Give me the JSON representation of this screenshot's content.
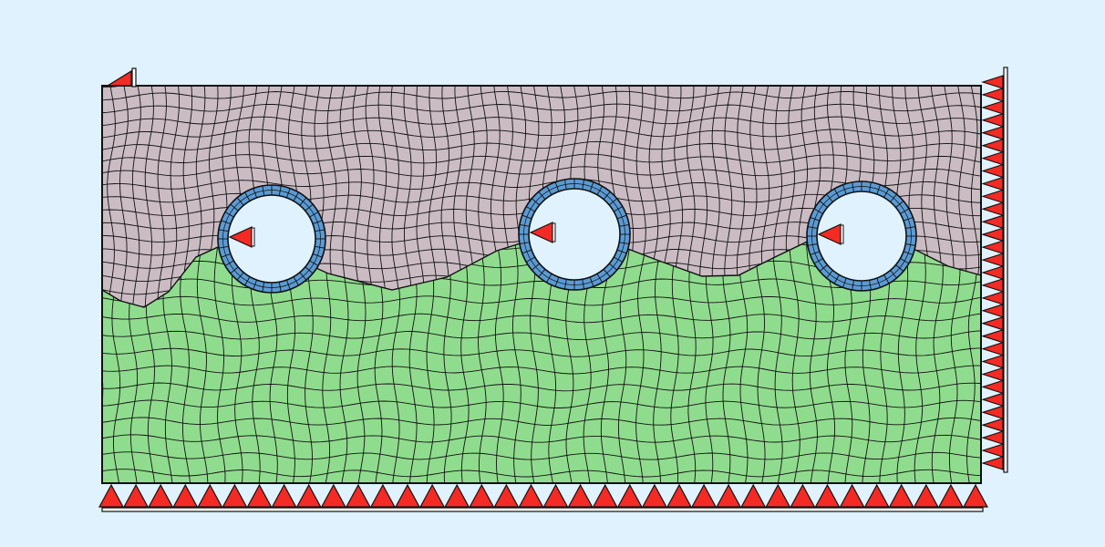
{
  "viewport": {
    "background_color": "#dff2fd"
  },
  "model": {
    "soil_layers": [
      {
        "name": "upper-soil",
        "color": "#cbbcc4"
      },
      {
        "name": "lower-soil",
        "color": "#90dc8e"
      }
    ],
    "tunnels": {
      "count": 3,
      "lining_color": "#5b9bd5",
      "interior_color": "#dff2fd"
    },
    "mesh": {
      "line_color": "#111111"
    },
    "supports": {
      "color": "#f42a24",
      "bottom_count": 36,
      "right_count": 31
    }
  }
}
